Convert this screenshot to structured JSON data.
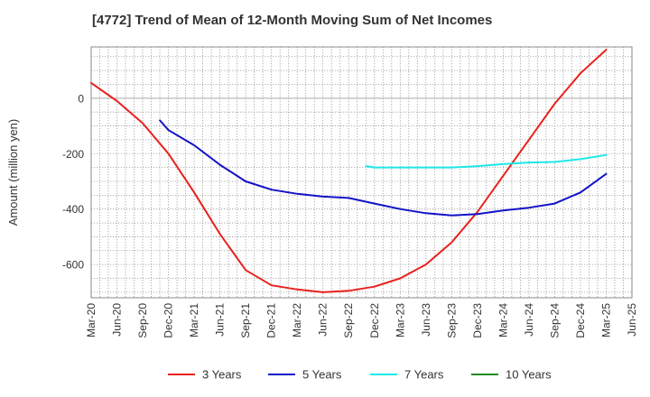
{
  "chart_data": {
    "type": "line",
    "title": "[4772]  Trend of Mean of 12-Month Moving Sum of Net Incomes",
    "xlabel": "",
    "ylabel": "Amount (million yen)",
    "ylim": [
      -720,
      185
    ],
    "yticks": [
      0,
      -200,
      -400,
      -600
    ],
    "x_ticks": [
      "Mar-20",
      "Jun-20",
      "Sep-20",
      "Dec-20",
      "Mar-21",
      "Jun-21",
      "Sep-21",
      "Dec-21",
      "Mar-22",
      "Jun-22",
      "Sep-22",
      "Dec-22",
      "Mar-23",
      "Jun-23",
      "Sep-23",
      "Dec-23",
      "Mar-24",
      "Jun-24",
      "Sep-24",
      "Dec-24",
      "Mar-25",
      "Jun-25"
    ],
    "grid": true,
    "legend_position": "bottom",
    "series": [
      {
        "name": "3 Years",
        "color": "#e8211d",
        "x": [
          "Mar-20",
          "Jun-20",
          "Sep-20",
          "Dec-20",
          "Mar-21",
          "Jun-21",
          "Sep-21",
          "Dec-21",
          "Mar-22",
          "Jun-22",
          "Sep-22",
          "Dec-22",
          "Mar-23",
          "Jun-23",
          "Sep-23",
          "Dec-23",
          "Mar-24",
          "Jun-24",
          "Sep-24",
          "Dec-24",
          "Mar-25"
        ],
        "values": [
          55,
          -10,
          -90,
          -200,
          -340,
          -490,
          -620,
          -675,
          -690,
          -700,
          -695,
          -680,
          -650,
          -600,
          -520,
          -410,
          -280,
          -150,
          -20,
          90,
          175
        ]
      },
      {
        "name": "5 Years",
        "color": "#1313c8",
        "x": [
          "Nov-20",
          "Dec-20",
          "Mar-21",
          "Jun-21",
          "Sep-21",
          "Dec-21",
          "Mar-22",
          "Jun-22",
          "Sep-22",
          "Dec-22",
          "Mar-23",
          "Jun-23",
          "Sep-23",
          "Dec-23",
          "Mar-24",
          "Jun-24",
          "Sep-24",
          "Dec-24",
          "Mar-25"
        ],
        "values": [
          -80,
          -115,
          -170,
          -240,
          -300,
          -330,
          -345,
          -355,
          -360,
          -380,
          -400,
          -415,
          -423,
          -418,
          -405,
          -395,
          -380,
          -340,
          -273
        ]
      },
      {
        "name": "7 Years",
        "color": "#1ee8e8",
        "x": [
          "Nov-22",
          "Dec-22",
          "Mar-23",
          "Jun-23",
          "Sep-23",
          "Dec-23",
          "Mar-24",
          "Jun-24",
          "Sep-24",
          "Dec-24",
          "Mar-25"
        ],
        "values": [
          -245,
          -250,
          -250,
          -250,
          -250,
          -245,
          -238,
          -232,
          -230,
          -220,
          -205
        ]
      },
      {
        "name": "10 Years",
        "color": "#228b22",
        "x": [],
        "values": []
      }
    ]
  }
}
